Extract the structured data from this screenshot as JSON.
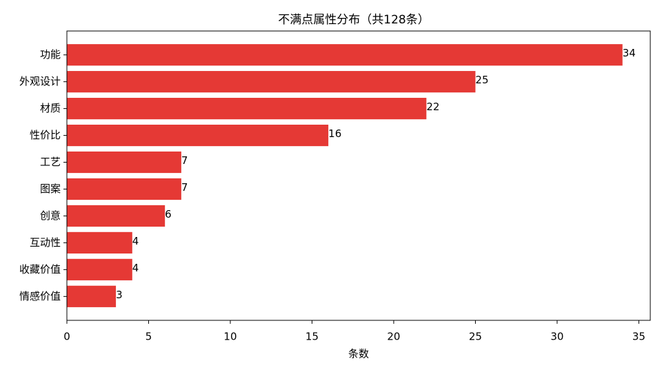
{
  "chart_data": {
    "type": "bar",
    "orientation": "horizontal",
    "title": "不满点属性分布（共128条）",
    "x_label": "条数",
    "categories": [
      "功能",
      "外观设计",
      "材质",
      "性价比",
      "工艺",
      "图案",
      "创意",
      "互动性",
      "收藏价值",
      "情感价值"
    ],
    "values": [
      34,
      25,
      22,
      16,
      7,
      7,
      6,
      4,
      4,
      3
    ],
    "color": "#e53935",
    "xlim": [
      0,
      35.7
    ],
    "xticks": [
      0,
      5,
      10,
      15,
      20,
      25,
      30,
      35
    ]
  }
}
